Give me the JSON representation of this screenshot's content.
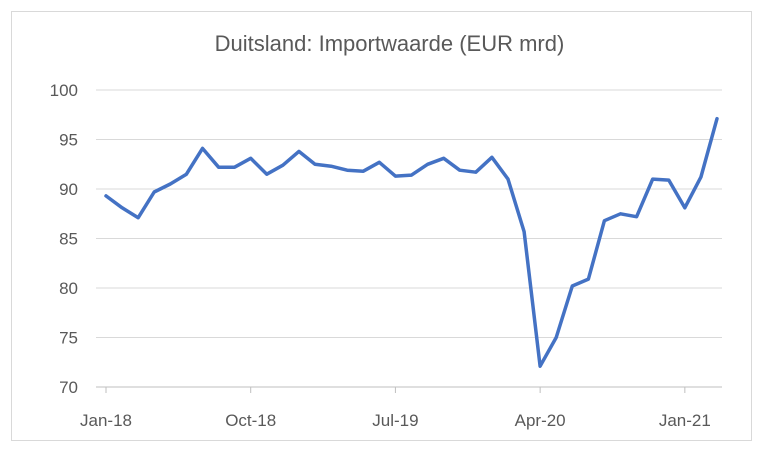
{
  "chart_data": {
    "type": "line",
    "title": "Duitsland: Importwaarde (EUR mrd)",
    "xlabel": "",
    "ylabel": "",
    "ylim": [
      70,
      100
    ],
    "yticks": [
      70,
      75,
      80,
      85,
      90,
      95,
      100
    ],
    "xtick_labels": [
      "Jan-18",
      "Oct-18",
      "Jul-19",
      "Apr-20",
      "Jan-21"
    ],
    "grid": "horizontal",
    "legend": "none",
    "line_color": "#4472c4",
    "x": [
      "2018-01",
      "2018-02",
      "2018-03",
      "2018-04",
      "2018-05",
      "2018-06",
      "2018-07",
      "2018-08",
      "2018-09",
      "2018-10",
      "2018-11",
      "2018-12",
      "2019-01",
      "2019-02",
      "2019-03",
      "2019-04",
      "2019-05",
      "2019-06",
      "2019-07",
      "2019-08",
      "2019-09",
      "2019-10",
      "2019-11",
      "2019-12",
      "2020-01",
      "2020-02",
      "2020-03",
      "2020-04",
      "2020-05",
      "2020-06",
      "2020-07",
      "2020-08",
      "2020-09",
      "2020-10",
      "2020-11",
      "2020-12",
      "2021-01",
      "2021-02",
      "2021-03"
    ],
    "series": [
      {
        "values": [
          89.3,
          88.1,
          87.1,
          89.7,
          90.5,
          91.5,
          94.1,
          92.2,
          92.2,
          93.1,
          91.5,
          92.4,
          93.8,
          92.5,
          92.3,
          91.9,
          91.8,
          92.7,
          91.3,
          91.4,
          92.5,
          93.1,
          91.9,
          91.7,
          93.2,
          91.0,
          85.7,
          72.1,
          75.0,
          80.2,
          80.9,
          86.8,
          87.5,
          87.2,
          91.0,
          90.9,
          88.1,
          91.2,
          97.1
        ]
      }
    ]
  }
}
